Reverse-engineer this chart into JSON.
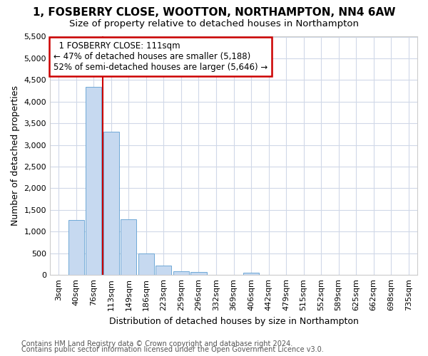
{
  "title1": "1, FOSBERRY CLOSE, WOOTTON, NORTHAMPTON, NN4 6AW",
  "title2": "Size of property relative to detached houses in Northampton",
  "xlabel": "Distribution of detached houses by size in Northampton",
  "ylabel": "Number of detached properties",
  "bin_labels": [
    "3sqm",
    "40sqm",
    "76sqm",
    "113sqm",
    "149sqm",
    "186sqm",
    "223sqm",
    "259sqm",
    "296sqm",
    "332sqm",
    "369sqm",
    "406sqm",
    "442sqm",
    "479sqm",
    "515sqm",
    "552sqm",
    "589sqm",
    "625sqm",
    "662sqm",
    "698sqm",
    "735sqm"
  ],
  "bar_values": [
    0,
    1270,
    4340,
    3300,
    1280,
    490,
    220,
    90,
    70,
    0,
    0,
    55,
    0,
    0,
    0,
    0,
    0,
    0,
    0,
    0,
    0
  ],
  "bar_color": "#c6d9f0",
  "bar_edge_color": "#6fa8d6",
  "annotation_title": "1 FOSBERRY CLOSE: 111sqm",
  "annotation_line1": "← 47% of detached houses are smaller (5,188)",
  "annotation_line2": "52% of semi-detached houses are larger (5,646) →",
  "annotation_box_color": "#ffffff",
  "annotation_box_edge": "#cc0000",
  "vline_color": "#cc0000",
  "vline_bin": 3,
  "ylim_max": 5500,
  "ytick_step": 500,
  "footer1": "Contains HM Land Registry data © Crown copyright and database right 2024.",
  "footer2": "Contains public sector information licensed under the Open Government Licence v3.0.",
  "bg_color": "#ffffff",
  "plot_bg_color": "#ffffff",
  "grid_color": "#d0d8e8",
  "title_fontsize": 11,
  "subtitle_fontsize": 9.5,
  "axis_label_fontsize": 9,
  "tick_fontsize": 8,
  "footer_fontsize": 7,
  "annotation_fontsize": 8.5
}
